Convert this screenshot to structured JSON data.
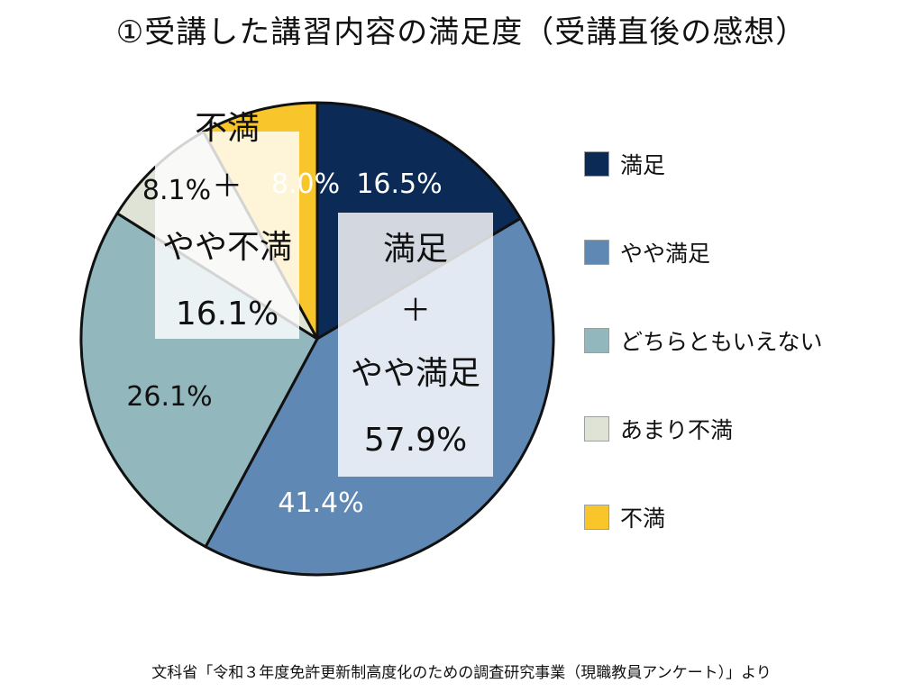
{
  "chart_data": {
    "type": "pie",
    "title": "①受講した講習内容の満足度（受講直後の感想）",
    "categories": [
      "満足",
      "やや満足",
      "どちらともいえない",
      "あまり不満",
      "不満"
    ],
    "values": [
      16.5,
      41.4,
      26.1,
      8.1,
      8.0
    ],
    "value_labels": [
      "16.5%",
      "41.4%",
      "26.1%",
      "8.1%",
      "8.0%"
    ],
    "colors": [
      "#0b2a56",
      "#5f88b4",
      "#92b8bd",
      "#dfe3d6",
      "#f8c52b"
    ],
    "start": "12 o'clock, clockwise",
    "legend_position": "right",
    "annotations": [
      {
        "lines": [
          "満足",
          "＋",
          "やや満足",
          "57.9%"
        ]
      },
      {
        "lines": [
          "不満",
          "＋",
          "やや不満",
          "16.1%"
        ]
      }
    ]
  },
  "source": "文科省「令和３年度免許更新制高度化のための調査研究事業（現職教員アンケート）」より"
}
